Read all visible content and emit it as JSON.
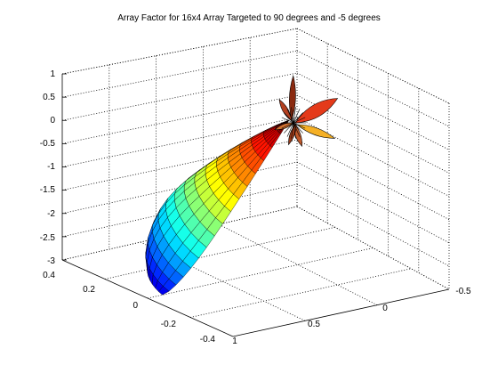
{
  "chart_data": {
    "type": "surface",
    "title": "Array Factor for 16x4 Array Targeted to 90 degrees and -5 degrees",
    "colormap": "jet",
    "grid": true,
    "zlim": [
      -3,
      1
    ],
    "ylim": [
      -0.4,
      0.4
    ],
    "xlim": [
      -0.5,
      1
    ],
    "z_ticks": [
      "1",
      "0.5",
      "0",
      "-0.5",
      "-1",
      "-1.5",
      "-2",
      "-2.5",
      "-3"
    ],
    "y_ticks": [
      "0.4",
      "0.2",
      "0",
      "-0.2",
      "-0.4"
    ],
    "x_ticks": [
      "1",
      "0.5",
      "0",
      "-0.5"
    ],
    "main_lobe": {
      "direction_x": 0.9,
      "direction_y": 0.0,
      "direction_z": -3.0
    },
    "side_lobes": [
      {
        "x": -0.05,
        "y": 0.0,
        "z": 1.0
      },
      {
        "x": -0.45,
        "y": 0.05,
        "z": 0.4
      },
      {
        "x": -0.3,
        "y": 0.0,
        "z": -0.4
      }
    ]
  }
}
